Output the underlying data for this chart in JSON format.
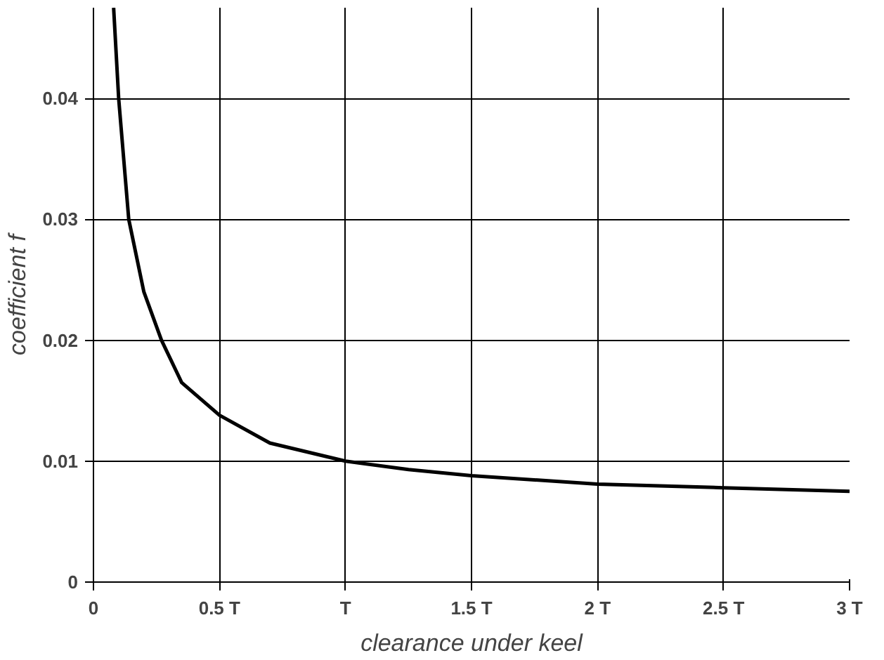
{
  "chart_data": {
    "type": "line",
    "xlabel": "clearance under keel",
    "ylabel": "coefficient f",
    "x": [
      0.08,
      0.1,
      0.14,
      0.2,
      0.27,
      0.35,
      0.5,
      0.7,
      1.0,
      1.25,
      1.5,
      2.0,
      2.5,
      3.0
    ],
    "series": [
      {
        "color": "#000000",
        "values": [
          0.0475,
          0.04,
          0.03,
          0.024,
          0.02,
          0.0165,
          0.0138,
          0.0115,
          0.01,
          0.0093,
          0.0088,
          0.0081,
          0.0078,
          0.0075
        ]
      }
    ],
    "xlim": [
      0,
      3
    ],
    "ylim": [
      0,
      0.0475
    ],
    "xticks": [
      0,
      {
        "value": 0.5,
        "label": "0.5 T"
      },
      {
        "value": 1,
        "label": "T"
      },
      {
        "value": 1.5,
        "label": "1.5 T"
      },
      {
        "value": 2,
        "label": "2 T"
      },
      {
        "value": 2.5,
        "label": "2.5 T"
      },
      {
        "value": 3,
        "label": "3 T"
      }
    ],
    "yticks": [
      0,
      0.01,
      0.02,
      0.03,
      0.04
    ],
    "grid": true,
    "marker": "none",
    "line_style": "solid"
  }
}
